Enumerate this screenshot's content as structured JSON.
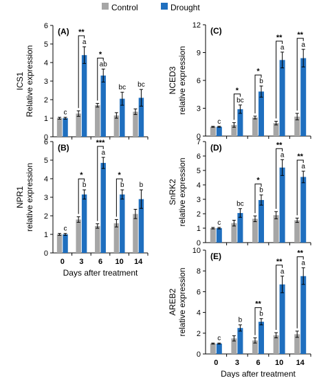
{
  "legend": {
    "control_label": "Control",
    "drought_label": "Drought",
    "control_color": "#a6a6a6",
    "drought_color": "#1f6fbf"
  },
  "chart_data": [
    {
      "id": "A",
      "panel_label": "(A)",
      "type": "bar",
      "ylabel_lines": [
        "ICS1",
        "Relative expression"
      ],
      "ylim": [
        0,
        6
      ],
      "yticks": [
        "0",
        "1",
        "2",
        "3",
        "4",
        "5",
        "6"
      ],
      "categories": [
        "0",
        "3",
        "6",
        "10",
        "14"
      ],
      "xtick_labels_shown": false,
      "xlabel": "",
      "series": [
        {
          "name": "Control",
          "values": [
            1.0,
            1.25,
            1.7,
            1.15,
            1.35
          ],
          "errors": [
            0.05,
            0.15,
            0.1,
            0.15,
            0.15
          ]
        },
        {
          "name": "Drought",
          "values": [
            1.0,
            4.4,
            3.3,
            2.05,
            2.1
          ],
          "errors": [
            0.05,
            0.45,
            0.35,
            0.35,
            0.45
          ]
        }
      ],
      "letters": [
        "c",
        "a",
        "ab",
        "bc",
        "bc"
      ],
      "significance": [
        "",
        "**",
        "*",
        "",
        ""
      ]
    },
    {
      "id": "B",
      "panel_label": "(B)",
      "type": "bar",
      "ylabel_lines": [
        "NPR1",
        "relative expression"
      ],
      "ylim": [
        0,
        6
      ],
      "yticks": [
        "0",
        "1",
        "2",
        "3",
        "4",
        "5",
        "6"
      ],
      "categories": [
        "0",
        "3",
        "6",
        "10",
        "14"
      ],
      "xtick_labels_shown": true,
      "xlabel": "Days after treatment",
      "series": [
        {
          "name": "Control",
          "values": [
            1.0,
            1.8,
            1.45,
            1.6,
            2.1
          ],
          "errors": [
            0.05,
            0.15,
            0.12,
            0.2,
            0.25
          ]
        },
        {
          "name": "Drought",
          "values": [
            1.0,
            3.15,
            4.85,
            3.15,
            2.9
          ],
          "errors": [
            0.05,
            0.25,
            0.3,
            0.25,
            0.5
          ]
        }
      ],
      "letters": [
        "c",
        "b",
        "a",
        "b",
        "b"
      ],
      "significance": [
        "",
        "*",
        "***",
        "*",
        ""
      ]
    },
    {
      "id": "C",
      "panel_label": "(C)",
      "type": "bar",
      "ylabel_lines": [
        "NCED3",
        "relative expression"
      ],
      "ylim": [
        0,
        12
      ],
      "yticks": [
        "0",
        "3",
        "6",
        "9",
        "12"
      ],
      "categories": [
        "0",
        "3",
        "6",
        "10",
        "14"
      ],
      "xtick_labels_shown": false,
      "xlabel": "",
      "series": [
        {
          "name": "Control",
          "values": [
            1.0,
            1.2,
            2.0,
            1.4,
            2.1
          ],
          "errors": [
            0.05,
            0.25,
            0.15,
            0.2,
            0.35
          ]
        },
        {
          "name": "Drought",
          "values": [
            1.0,
            2.9,
            4.8,
            8.2,
            8.4
          ],
          "errors": [
            0.05,
            0.45,
            0.6,
            0.85,
            0.95
          ]
        }
      ],
      "letters": [
        "c",
        "bc",
        "b",
        "a",
        "a"
      ],
      "significance": [
        "",
        "*",
        "*",
        "**",
        "**"
      ]
    },
    {
      "id": "D",
      "panel_label": "(D)",
      "type": "bar",
      "ylabel_lines": [
        "SnRK2",
        "relative expression"
      ],
      "ylim": [
        0,
        7
      ],
      "yticks": [
        "0",
        "1",
        "2",
        "3",
        "4",
        "5",
        "6",
        "7"
      ],
      "categories": [
        "0",
        "3",
        "6",
        "10",
        "14"
      ],
      "xtick_labels_shown": false,
      "xlabel": "",
      "series": [
        {
          "name": "Control",
          "values": [
            1.0,
            1.35,
            1.65,
            1.9,
            1.55
          ],
          "errors": [
            0.05,
            0.2,
            0.2,
            0.25,
            0.15
          ]
        },
        {
          "name": "Drought",
          "values": [
            1.0,
            2.05,
            2.95,
            5.2,
            4.55
          ],
          "errors": [
            0.05,
            0.3,
            0.35,
            0.55,
            0.4
          ]
        }
      ],
      "letters": [
        "c",
        "bc",
        "b",
        "a",
        "a"
      ],
      "significance": [
        "",
        "",
        "*",
        "**",
        "**"
      ]
    },
    {
      "id": "E",
      "panel_label": "(E)",
      "type": "bar",
      "ylabel_lines": [
        "AREB2",
        "relative expression"
      ],
      "ylim": [
        0,
        10
      ],
      "yticks": [
        "0",
        "2",
        "4",
        "6",
        "8",
        "10"
      ],
      "categories": [
        "0",
        "3",
        "6",
        "10",
        "14"
      ],
      "xtick_labels_shown": true,
      "xlabel": "Days after treatment",
      "series": [
        {
          "name": "Control",
          "values": [
            1.0,
            1.5,
            1.3,
            1.8,
            1.9
          ],
          "errors": [
            0.05,
            0.25,
            0.25,
            0.25,
            0.3
          ]
        },
        {
          "name": "Drought",
          "values": [
            1.0,
            2.5,
            3.1,
            6.7,
            7.5
          ],
          "errors": [
            0.05,
            0.3,
            0.3,
            0.8,
            0.8
          ]
        }
      ],
      "letters": [
        "c",
        "b",
        "b",
        "a",
        "a"
      ],
      "significance": [
        "",
        "",
        "**",
        "**",
        "**"
      ]
    }
  ]
}
